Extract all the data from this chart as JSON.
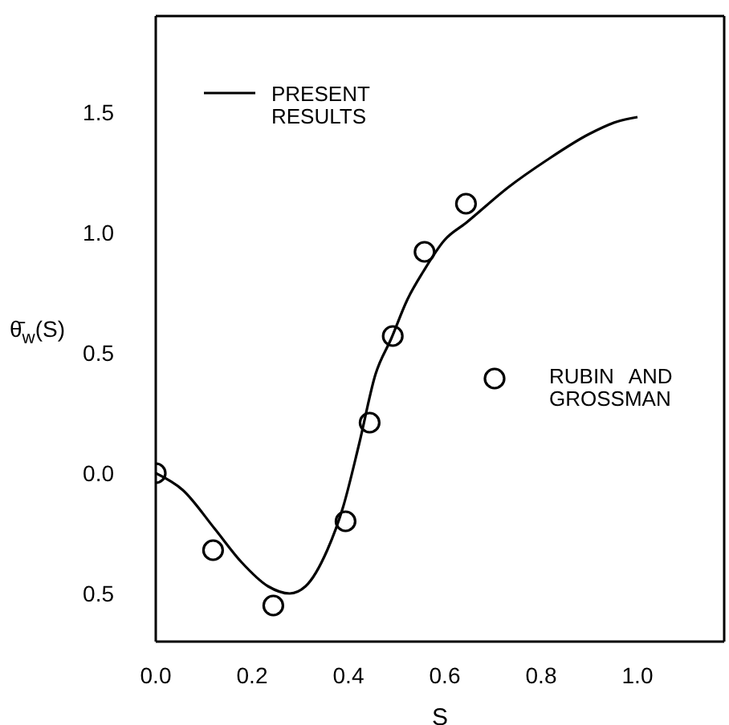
{
  "chart_data": {
    "type": "line",
    "xlabel": "S",
    "ylabel": "θ̄$_{w}$(S)",
    "xlim": [
      0,
      1.18
    ],
    "xticks": [
      {
        "value": 0,
        "label": "0.0"
      },
      {
        "value": 0.2,
        "label": "0.2"
      },
      {
        "value": 0.4,
        "label": "0.4"
      },
      {
        "value": 0.6,
        "label": "0.6"
      },
      {
        "value": 0.8,
        "label": "0.8"
      },
      {
        "value": 1.0,
        "label": "1.0"
      }
    ],
    "ylim": [
      -0.7,
      1.9
    ],
    "yticks": [
      {
        "value": -0.5,
        "label": "0.5"
      },
      {
        "value": 0,
        "label": "0.0"
      },
      {
        "value": 0.5,
        "label": "0.5"
      },
      {
        "value": 1.0,
        "label": "1.0"
      },
      {
        "value": 1.5,
        "label": "1.5"
      }
    ],
    "legend": "top left",
    "grid": false,
    "series": [
      {
        "name": "PRESENT RESULTS",
        "marker": "none",
        "line_style": "solid",
        "color": "#000000",
        "x": [
          0,
          0.056,
          0.122,
          0.178,
          0.233,
          0.278,
          0.311,
          0.356,
          0.389,
          0.422,
          0.456,
          0.489,
          0.522,
          0.556,
          0.6,
          0.644,
          0.733,
          0.811,
          0.9,
          0.956,
          1.0
        ],
        "values": [
          0,
          -0.07,
          -0.23,
          -0.37,
          -0.47,
          -0.5,
          -0.47,
          -0.32,
          -0.14,
          0.12,
          0.41,
          0.56,
          0.72,
          0.84,
          0.97,
          1.04,
          1.19,
          1.3,
          1.41,
          1.46,
          1.48
        ]
      },
      {
        "name": "RUBIN AND GROSSMAN",
        "type": "scatter",
        "marker": "circle",
        "color": "#000000",
        "x": [
          0,
          0.119,
          0.244,
          0.394,
          0.444,
          0.492,
          0.558,
          0.644
        ],
        "values": [
          0,
          -0.32,
          -0.55,
          -0.2,
          0.21,
          0.57,
          0.92,
          1.12
        ]
      }
    ]
  }
}
